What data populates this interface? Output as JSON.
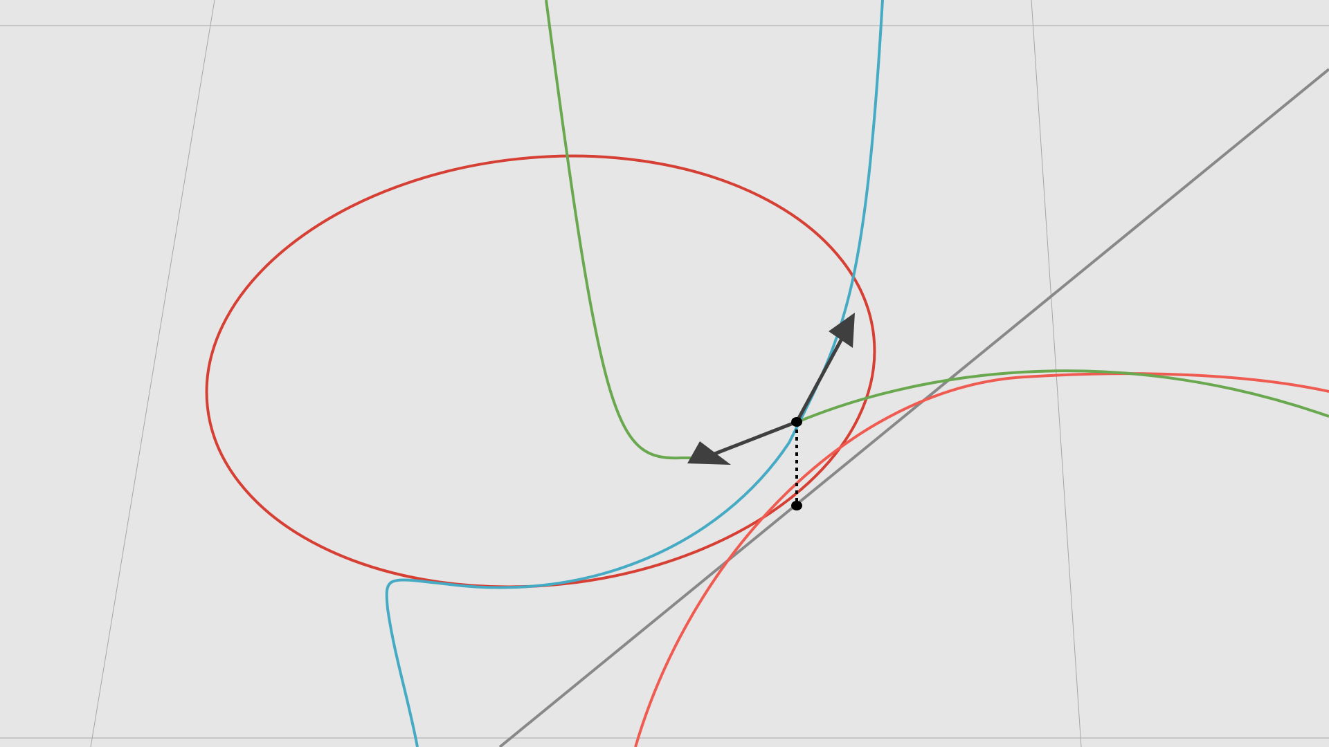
{
  "canvas": {
    "background": "#e6e6e6",
    "grid_visible": true,
    "grid_color": "#a6a6a6",
    "axes_visible": false,
    "labels_visible": false
  },
  "colors": {
    "tangent_line": "#888888",
    "red_circle": "#d63f33",
    "coral_circle": "#ef5b50",
    "green_curve": "#6aa84f",
    "blue_curve": "#45aac4",
    "vectors": "#3f3f3f",
    "points": "#000000",
    "connector": "#000000"
  },
  "objects": [
    {
      "name": "tangent-line",
      "kind": "line",
      "color_key": "tangent_line"
    },
    {
      "name": "red-circle",
      "kind": "circle",
      "color_key": "red_circle"
    },
    {
      "name": "coral-circle",
      "kind": "circle",
      "color_key": "coral_circle"
    },
    {
      "name": "green-curve",
      "kind": "curve",
      "color_key": "green_curve"
    },
    {
      "name": "blue-curve",
      "kind": "curve",
      "color_key": "blue_curve"
    },
    {
      "name": "velocity-vector",
      "kind": "vector",
      "color_key": "vectors"
    },
    {
      "name": "acceleration-vector",
      "kind": "vector",
      "color_key": "vectors"
    },
    {
      "name": "upper-point",
      "kind": "point",
      "color_key": "points"
    },
    {
      "name": "lower-point",
      "kind": "point",
      "color_key": "points"
    },
    {
      "name": "vertical-connector",
      "kind": "dotted-segment",
      "color_key": "connector"
    }
  ]
}
